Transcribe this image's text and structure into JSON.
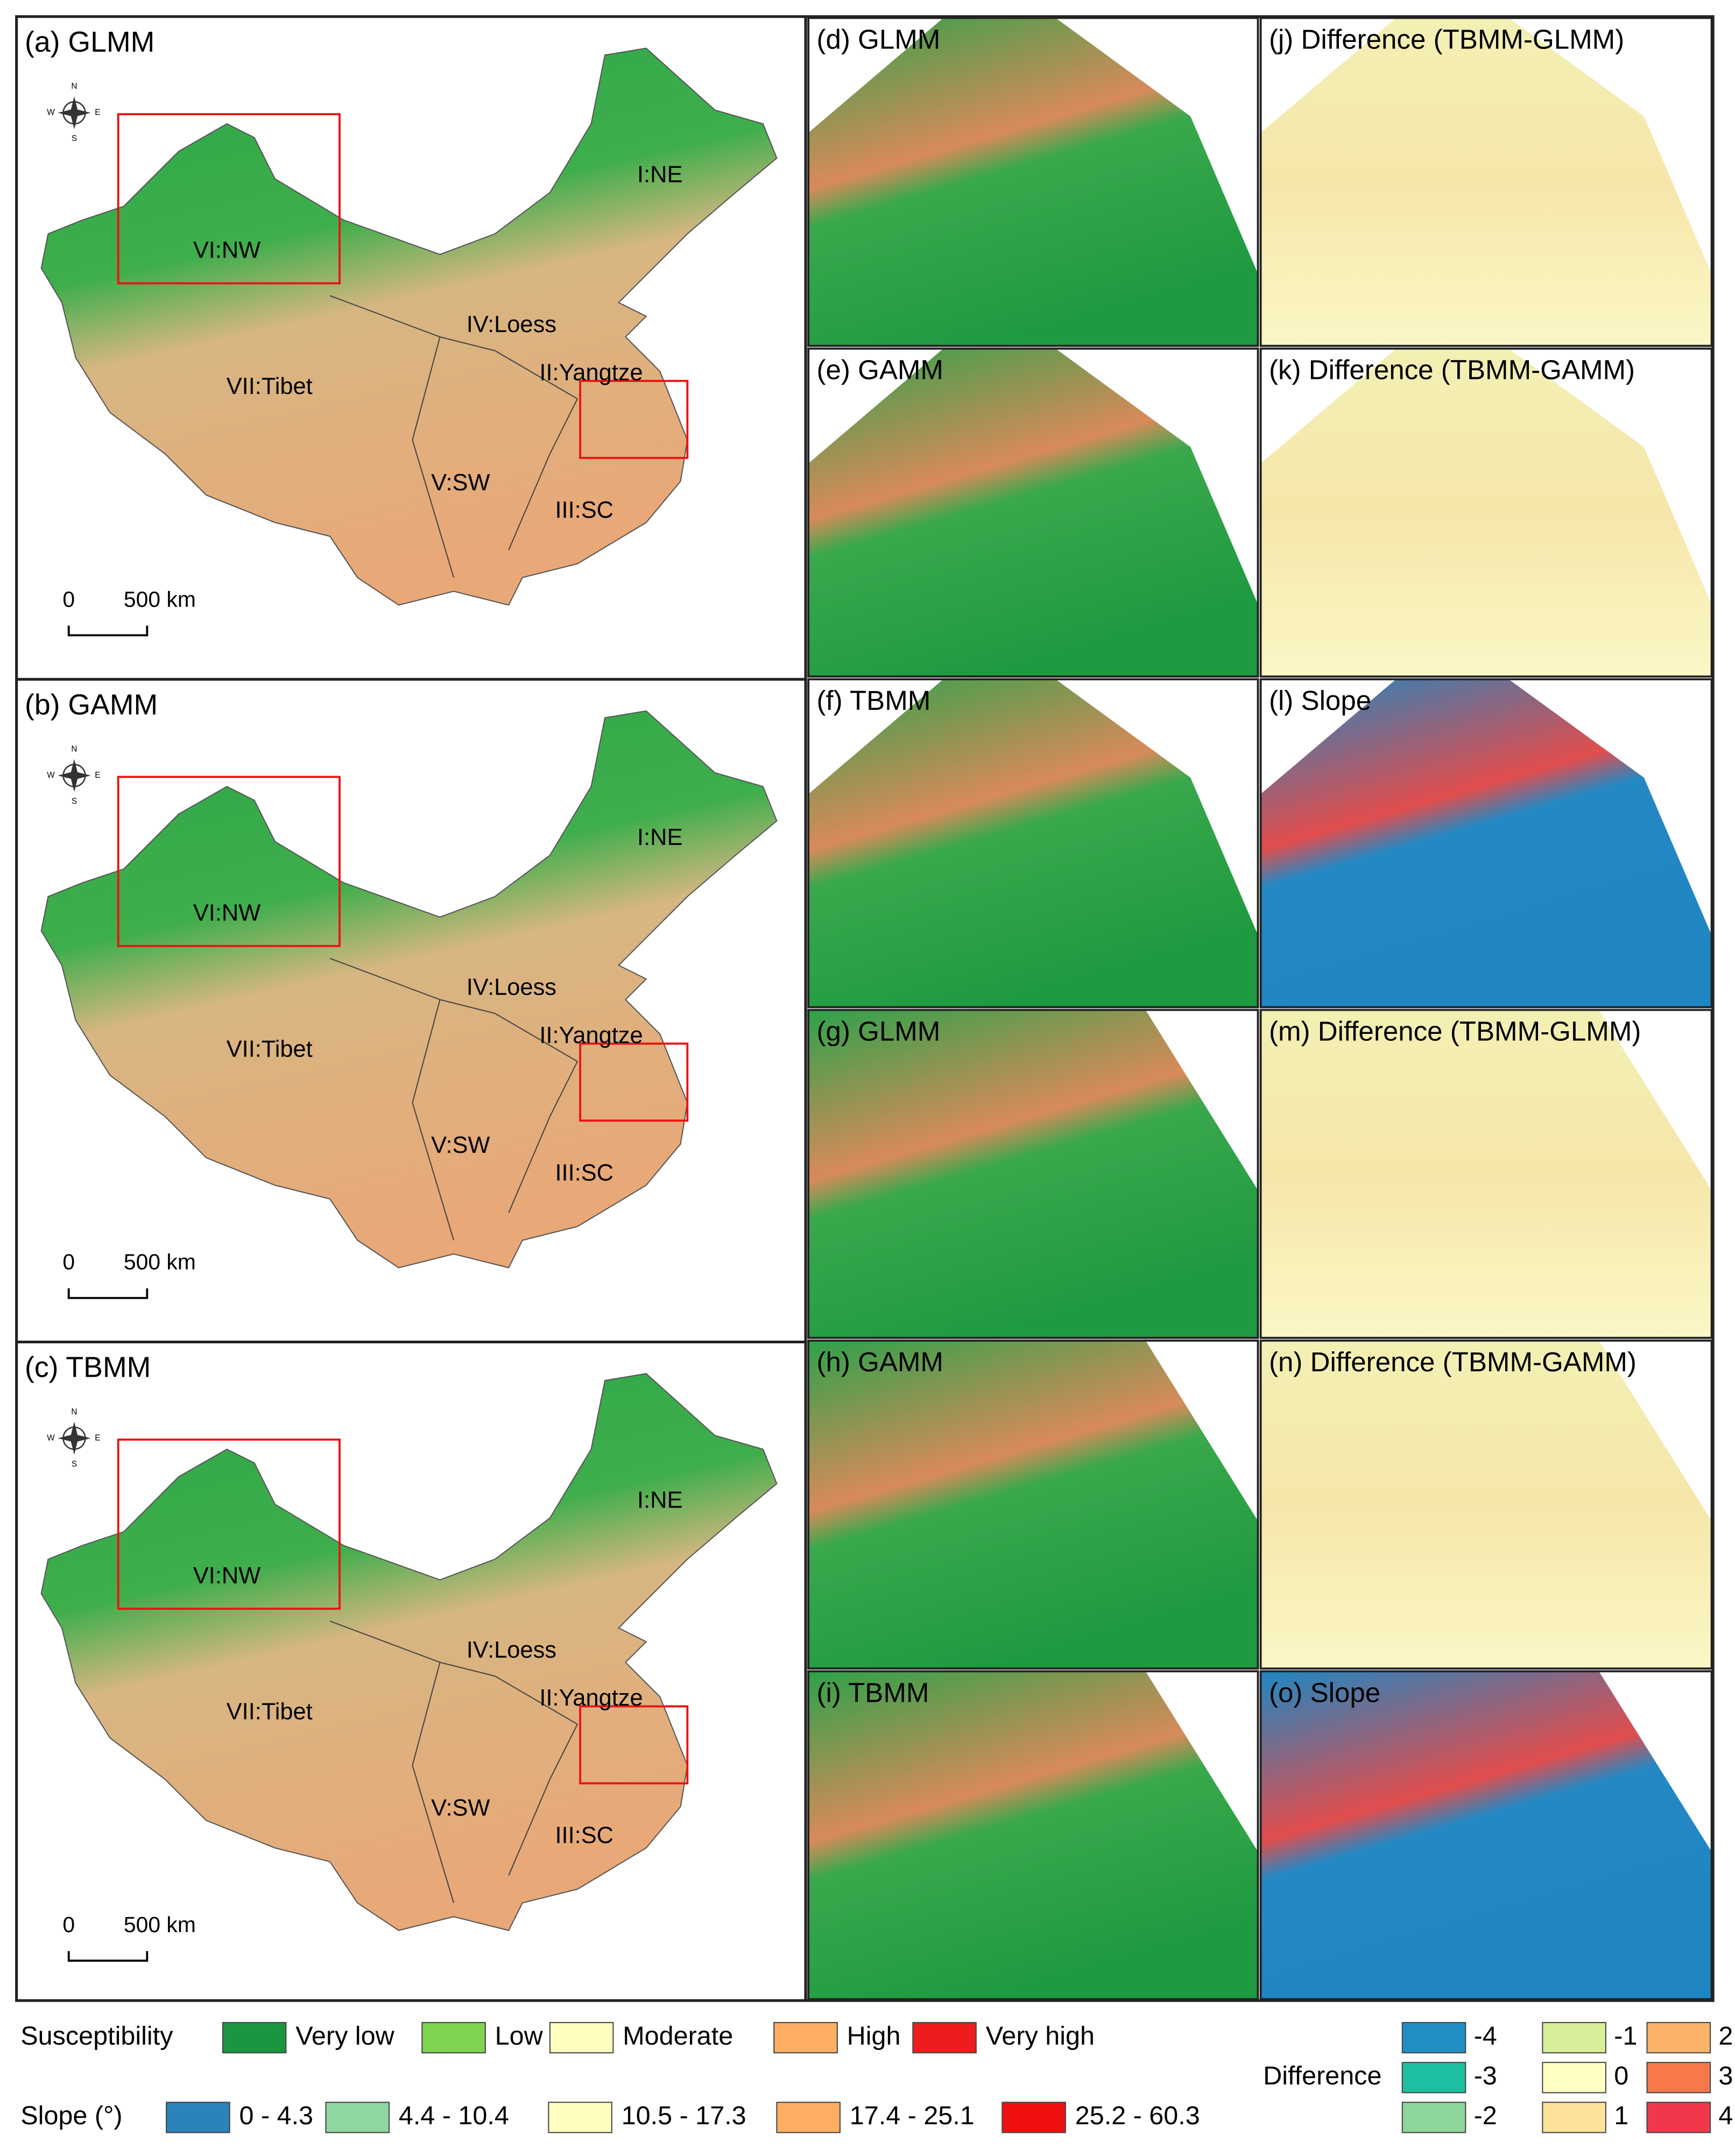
{
  "panels": [
    {
      "label": "(a) GLMM"
    },
    {
      "label": "(b) GAMM"
    },
    {
      "label": "(c) TBMM"
    }
  ],
  "regions": [
    "I:NE",
    "II:Yangtze",
    "III:SC",
    "IV:Loess",
    "V:SW",
    "VI:NW",
    "VII:Tibet"
  ],
  "scale_bar": [
    "0",
    "500 km"
  ],
  "compass": [
    "N",
    "E",
    "S",
    "W"
  ],
  "subpanels": [
    {
      "label": "(d) GLMM",
      "kind": "model",
      "area": "nw"
    },
    {
      "label": "(j) Difference (TBMM-GLMM)",
      "kind": "difference",
      "area": "nw"
    },
    {
      "label": "(e) GAMM",
      "kind": "model",
      "area": "nw"
    },
    {
      "label": "(k) Difference (TBMM-GAMM)",
      "kind": "difference",
      "area": "nw"
    },
    {
      "label": "(f) TBMM",
      "kind": "model",
      "area": "nw"
    },
    {
      "label": "(l) Slope",
      "kind": "slope",
      "area": "nw"
    },
    {
      "label": "(g) GLMM",
      "kind": "model",
      "area": "yangtze"
    },
    {
      "label": "(m) Difference (TBMM-GLMM)",
      "kind": "difference",
      "area": "yangtze"
    },
    {
      "label": "(h) GAMM",
      "kind": "model",
      "area": "yangtze"
    },
    {
      "label": "(n) Difference (TBMM-GAMM)",
      "kind": "difference",
      "area": "yangtze"
    },
    {
      "label": "(i) TBMM",
      "kind": "model",
      "area": "yangtze"
    },
    {
      "label": "(o) Slope",
      "kind": "slope",
      "area": "yangtze"
    }
  ],
  "legend": {
    "susceptibility": {
      "title": "Susceptibility",
      "items": [
        {
          "label": "Very low",
          "color": "#1a9641"
        },
        {
          "label": "Low",
          "color": "#7fd34e"
        },
        {
          "label": "Moderate",
          "color": "#ffffc0"
        },
        {
          "label": "High",
          "color": "#fdae61"
        },
        {
          "label": "Very high",
          "color": "#ee1c1c"
        }
      ]
    },
    "slope": {
      "title": "Slope (°)",
      "items": [
        {
          "label": "0 - 4.3",
          "color": "#2b83ba"
        },
        {
          "label": "4.4 - 10.4",
          "color": "#8fd6a0"
        },
        {
          "label": "10.5 - 17.3",
          "color": "#ffffbf"
        },
        {
          "label": "17.4 - 25.1",
          "color": "#fdae61"
        },
        {
          "label": "25.2 - 60.3",
          "color": "#f01010"
        }
      ]
    },
    "difference": {
      "title": "Difference",
      "items": [
        {
          "label": "-4",
          "color": "#1f8fc4"
        },
        {
          "label": "-3",
          "color": "#1cc0a0"
        },
        {
          "label": "-2",
          "color": "#8ed69a"
        },
        {
          "label": "-1",
          "color": "#d8ef9a"
        },
        {
          "label": "0",
          "color": "#ffffc4"
        },
        {
          "label": "1",
          "color": "#fde39a"
        },
        {
          "label": "2",
          "color": "#fbb36a"
        },
        {
          "label": "3",
          "color": "#f8784a"
        },
        {
          "label": "4",
          "color": "#f0384a"
        }
      ]
    }
  }
}
